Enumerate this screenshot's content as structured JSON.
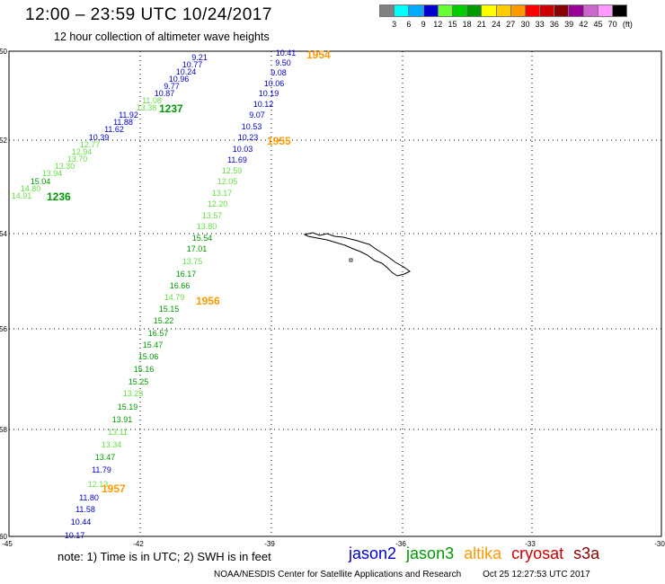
{
  "header": {
    "title": "12:00 – 23:59 UTC 10/24/2017",
    "subtitle": "12 hour collection of altimeter wave heights"
  },
  "legend": {
    "colors": [
      "#808080",
      "#00ffff",
      "#00aaff",
      "#0000cc",
      "#66ff33",
      "#00cc00",
      "#009900",
      "#ffff00",
      "#ffcc00",
      "#ff9900",
      "#ff0000",
      "#cc0000",
      "#880000",
      "#990099",
      "#cc66cc",
      "#ff99ff",
      "#000000"
    ],
    "labels": [
      "3",
      "6",
      "9",
      "12",
      "15",
      "18",
      "21",
      "24",
      "27",
      "30",
      "33",
      "36",
      "39",
      "42",
      "45",
      "70"
    ],
    "unit": "(ft)"
  },
  "map": {
    "lat_labels": [
      "-50",
      "-52",
      "-54",
      "-56",
      "-58",
      "-60"
    ],
    "lon_labels": [
      "-45",
      "-42",
      "-39",
      "-36",
      "-33",
      "-30"
    ],
    "island": "south-georgia-island",
    "colors": {
      "jason2": "#0000cc",
      "jason3": "#009900",
      "jason3_light": "#66dd44",
      "altika": "#ff9900"
    },
    "tracks": [
      {
        "name": "jason2-ascending-track",
        "labels": [
          {
            "t": "9.21",
            "c": "jason2"
          },
          {
            "t": "10.77",
            "c": "jason2"
          },
          {
            "t": "10.24",
            "c": "jason2"
          },
          {
            "t": "10.96",
            "c": "jason2"
          },
          {
            "t": "9.77",
            "c": "jason2"
          },
          {
            "t": "10.87",
            "c": "jason2"
          },
          {
            "t": "11.08",
            "c": "jason3_light"
          },
          {
            "t": "13.38",
            "c": "jason3_light"
          },
          {
            "t": "11.92",
            "c": "jason2"
          },
          {
            "t": "11.88",
            "c": "jason2"
          },
          {
            "t": "11.62",
            "c": "jason2"
          },
          {
            "t": "10.39",
            "c": "jason2"
          },
          {
            "t": "12.77",
            "c": "jason3_light"
          },
          {
            "t": "12.94",
            "c": "jason3_light"
          },
          {
            "t": "13.70",
            "c": "jason3_light"
          },
          {
            "t": "13.30",
            "c": "jason3_light"
          },
          {
            "t": "13.94",
            "c": "jason3_light"
          },
          {
            "t": "15.04",
            "c": "jason3"
          },
          {
            "t": "14.80",
            "c": "jason3_light"
          },
          {
            "t": "14.91",
            "c": "jason3_light"
          }
        ],
        "times": [
          {
            "t": "1237",
            "c": "jason3"
          },
          {
            "t": "1236",
            "c": "jason3"
          }
        ]
      },
      {
        "name": "altika-descending-track",
        "labels": [
          {
            "t": "10.41",
            "c": "jason2"
          },
          {
            "t": "9.50",
            "c": "jason2"
          },
          {
            "t": "9.08",
            "c": "jason2"
          },
          {
            "t": "10.06",
            "c": "jason2"
          },
          {
            "t": "10.19",
            "c": "jason2"
          },
          {
            "t": "10.12",
            "c": "jason2"
          },
          {
            "t": "9.07",
            "c": "jason2"
          },
          {
            "t": "10.53",
            "c": "jason2"
          },
          {
            "t": "10.23",
            "c": "jason2"
          },
          {
            "t": "10.03",
            "c": "jason2"
          },
          {
            "t": "11.69",
            "c": "jason2"
          },
          {
            "t": "12.59",
            "c": "jason3_light"
          },
          {
            "t": "12.05",
            "c": "jason3_light"
          },
          {
            "t": "13.17",
            "c": "jason3_light"
          },
          {
            "t": "12.20",
            "c": "jason3_light"
          },
          {
            "t": "13.57",
            "c": "jason3_light"
          },
          {
            "t": "13.80",
            "c": "jason3_light"
          },
          {
            "t": "15.54",
            "c": "jason3"
          },
          {
            "t": "17.01",
            "c": "jason3"
          },
          {
            "t": "13.75",
            "c": "jason3_light"
          },
          {
            "t": "16.17",
            "c": "jason3"
          },
          {
            "t": "16.66",
            "c": "jason3"
          },
          {
            "t": "14.79",
            "c": "jason3_light"
          },
          {
            "t": "15.15",
            "c": "jason3"
          },
          {
            "t": "15.22",
            "c": "jason3"
          },
          {
            "t": "16.57",
            "c": "jason3"
          },
          {
            "t": "15.47",
            "c": "jason3"
          },
          {
            "t": "15.06",
            "c": "jason3"
          },
          {
            "t": "15.16",
            "c": "jason3"
          },
          {
            "t": "15.25",
            "c": "jason3"
          },
          {
            "t": "13.23",
            "c": "jason3_light"
          },
          {
            "t": "15.19",
            "c": "jason3"
          },
          {
            "t": "13.91",
            "c": "jason3"
          },
          {
            "t": "13.11",
            "c": "jason3_light"
          },
          {
            "t": "13.34",
            "c": "jason3_light"
          },
          {
            "t": "13.47",
            "c": "jason3"
          },
          {
            "t": "11.79",
            "c": "jason2"
          },
          {
            "t": "12.13",
            "c": "jason3_light"
          },
          {
            "t": "11.80",
            "c": "jason2"
          },
          {
            "t": "11.58",
            "c": "jason2"
          },
          {
            "t": "10.44",
            "c": "jason2"
          },
          {
            "t": "10.17",
            "c": "jason2"
          }
        ],
        "times": [
          {
            "t": "1954",
            "c": "altika"
          },
          {
            "t": "1955",
            "c": "altika"
          },
          {
            "t": "1956",
            "c": "altika"
          },
          {
            "t": "1957",
            "c": "altika"
          }
        ]
      }
    ]
  },
  "note": "note: 1) Time is in UTC; 2) SWH is in feet",
  "satellites": [
    {
      "name": "jason2",
      "color": "#0000cc"
    },
    {
      "name": "jason3",
      "color": "#009900"
    },
    {
      "name": "altika",
      "color": "#ff9900"
    },
    {
      "name": "cryosat",
      "color": "#cc0000"
    },
    {
      "name": "s3a",
      "color": "#880000"
    }
  ],
  "footer": {
    "credit": "NOAA/NESDIS Center for Satellite Applications and Research",
    "timestamp": "Oct 25 12:27:53 UTC 2017"
  }
}
